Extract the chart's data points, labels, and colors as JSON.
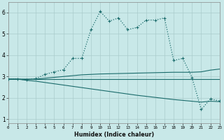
{
  "bg_color": "#c8e8e8",
  "grid_color": "#aacccc",
  "line_color": "#1a6b6b",
  "xlabel": "Humidex (Indice chaleur)",
  "xlim": [
    0,
    23
  ],
  "ylim": [
    0.8,
    6.5
  ],
  "yticks": [
    1,
    2,
    3,
    4,
    5,
    6
  ],
  "xticks": [
    0,
    1,
    2,
    3,
    4,
    5,
    6,
    7,
    8,
    9,
    10,
    11,
    12,
    13,
    14,
    15,
    16,
    17,
    18,
    19,
    20,
    21,
    22,
    23
  ],
  "series_main": {
    "x": [
      0,
      1,
      2,
      3,
      4,
      5,
      6,
      7,
      8,
      9,
      10,
      11,
      12,
      13,
      14,
      15,
      16,
      17,
      18,
      19,
      20,
      21,
      22,
      23
    ],
    "y": [
      2.88,
      2.88,
      2.84,
      2.9,
      3.1,
      3.22,
      3.32,
      3.85,
      3.85,
      5.2,
      6.05,
      5.6,
      5.75,
      5.2,
      5.3,
      5.65,
      5.65,
      5.75,
      3.75,
      3.85,
      2.95,
      1.45,
      1.95,
      1.85
    ]
  },
  "series_flat": {
    "x": [
      0,
      1,
      2,
      3,
      4,
      5,
      6,
      7,
      8,
      9,
      10,
      11,
      12,
      13,
      14,
      15,
      16,
      17,
      18,
      19,
      20,
      21,
      22,
      23
    ],
    "y": [
      2.88,
      2.88,
      2.88,
      2.88,
      2.88,
      2.88,
      2.88,
      2.88,
      2.88,
      2.88,
      2.88,
      2.88,
      2.88,
      2.88,
      2.88,
      2.88,
      2.88,
      2.88,
      2.88,
      2.88,
      2.88,
      2.88,
      2.88,
      2.88
    ]
  },
  "series_rise": {
    "x": [
      0,
      1,
      2,
      3,
      4,
      5,
      6,
      7,
      8,
      9,
      10,
      11,
      12,
      13,
      14,
      15,
      16,
      17,
      18,
      19,
      20,
      21,
      22,
      23
    ],
    "y": [
      2.88,
      2.88,
      2.88,
      2.88,
      2.92,
      2.96,
      3.0,
      3.04,
      3.08,
      3.1,
      3.12,
      3.13,
      3.14,
      3.15,
      3.16,
      3.17,
      3.18,
      3.19,
      3.2,
      3.2,
      3.2,
      3.22,
      3.3,
      3.35
    ]
  },
  "series_decline": {
    "x": [
      0,
      1,
      2,
      3,
      4,
      5,
      6,
      7,
      8,
      9,
      10,
      11,
      12,
      13,
      14,
      15,
      16,
      17,
      18,
      19,
      20,
      21,
      22,
      23
    ],
    "y": [
      2.88,
      2.88,
      2.82,
      2.78,
      2.72,
      2.66,
      2.6,
      2.54,
      2.48,
      2.42,
      2.36,
      2.3,
      2.24,
      2.18,
      2.12,
      2.07,
      2.02,
      1.97,
      1.92,
      1.88,
      1.84,
      1.8,
      1.84,
      1.82
    ]
  }
}
